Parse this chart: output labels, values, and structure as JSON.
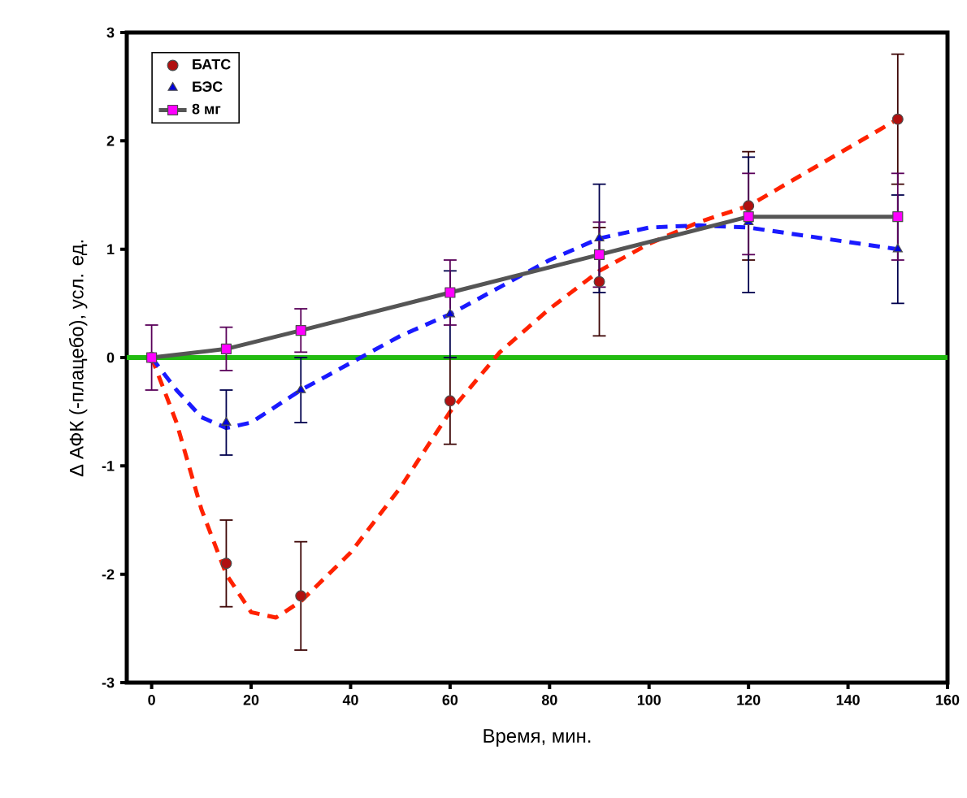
{
  "chart_data": {
    "type": "scatter",
    "xlabel": "Время, мин.",
    "ylabel": "∆ АФК (-плацебо), усл. ед.",
    "xlim": [
      -5,
      160
    ],
    "xticks": [
      0,
      20,
      40,
      60,
      80,
      100,
      120,
      140,
      160
    ],
    "ylim": [
      -3,
      3
    ],
    "yticks": [
      -3,
      -2,
      -1,
      0,
      1,
      2,
      3
    ],
    "grid": false,
    "legend": "top left",
    "ref_lines": [
      {
        "axis": "y",
        "value": 0,
        "color": "#22bb11"
      }
    ],
    "series": [
      {
        "name": "БАТС",
        "marker": "circle",
        "color": "#b01010",
        "x": [
          0,
          15,
          30,
          60,
          90,
          120,
          150
        ],
        "values": [
          0,
          -1.9,
          -2.2,
          -0.4,
          0.7,
          1.4,
          2.2
        ],
        "errors": [
          null,
          0.4,
          0.5,
          0.4,
          0.5,
          0.5,
          0.6
        ]
      },
      {
        "name": "БЭС",
        "marker": "triangle",
        "color": "#0000dd",
        "x": [
          15,
          30,
          60,
          90,
          120,
          150
        ],
        "values": [
          -0.6,
          -0.3,
          0.4,
          1.1,
          1.25,
          1.0
        ],
        "errors": [
          0.3,
          0.3,
          0.4,
          0.5,
          [
            0.6,
            1.85
          ],
          0.5
        ]
      },
      {
        "name": "8 мг",
        "type": "line",
        "marker": "square",
        "line_style": "solid",
        "color": "#ff00ff",
        "x": [
          0,
          15,
          30,
          60,
          90,
          120,
          150
        ],
        "values": [
          0,
          0.08,
          0.25,
          0.6,
          0.95,
          1.3,
          1.3
        ],
        "errors": [
          0.3,
          0.2,
          0.2,
          0.3,
          0.3,
          [
            0.95,
            1.7
          ],
          0.4
        ]
      },
      {
        "type": "line",
        "marker": "none",
        "line_style": "dashed",
        "color": "#ff2200",
        "x": [
          0,
          5,
          10,
          15,
          20,
          25,
          30,
          40,
          50,
          60,
          70,
          80,
          90,
          100,
          110,
          120,
          135,
          150
        ],
        "values": [
          0,
          -0.6,
          -1.4,
          -2.0,
          -2.35,
          -2.4,
          -2.25,
          -1.8,
          -1.2,
          -0.5,
          0.05,
          0.45,
          0.8,
          1.05,
          1.25,
          1.4,
          1.8,
          2.2
        ]
      },
      {
        "type": "line",
        "marker": "none",
        "line_style": "dashed",
        "color": "#1a1aff",
        "x": [
          0,
          5,
          10,
          15,
          20,
          25,
          30,
          40,
          50,
          60,
          70,
          80,
          90,
          100,
          110,
          120,
          135,
          150
        ],
        "values": [
          0,
          -0.3,
          -0.55,
          -0.65,
          -0.6,
          -0.45,
          -0.3,
          -0.05,
          0.2,
          0.4,
          0.65,
          0.9,
          1.1,
          1.2,
          1.22,
          1.2,
          1.1,
          1.0
        ]
      }
    ]
  }
}
